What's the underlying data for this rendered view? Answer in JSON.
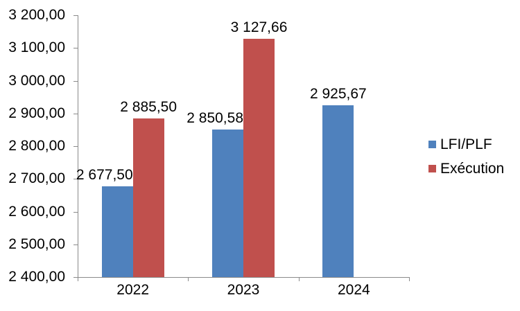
{
  "chart_data": {
    "type": "bar",
    "title": "",
    "xlabel": "",
    "ylabel": "",
    "grid": false,
    "legend_position": "right",
    "background_color": "#ffffff",
    "axis_color": "#8a8a8a",
    "text_color": "#000000",
    "categories": [
      "2022",
      "2023",
      "2024"
    ],
    "series": [
      {
        "name": "LFI/PLF",
        "key": "lfi-plf",
        "color": "#4F81BD",
        "values": [
          2677.5,
          2850.58,
          2925.67
        ],
        "labels": [
          "2 677,50",
          "2 850,58",
          "2 925,67"
        ]
      },
      {
        "name": "Exécution",
        "key": "execution",
        "color": "#C0504D",
        "values": [
          2885.5,
          3127.66,
          null
        ],
        "labels": [
          "2 885,50",
          "3 127,66",
          null
        ]
      }
    ],
    "y_axis": {
      "min": 2400,
      "max": 3200,
      "step": 100,
      "tick_labels": [
        "2 400,00",
        "2 500,00",
        "2 600,00",
        "2 700,00",
        "2 800,00",
        "2 900,00",
        "3 000,00",
        "3 100,00",
        "3 200,00"
      ]
    }
  }
}
